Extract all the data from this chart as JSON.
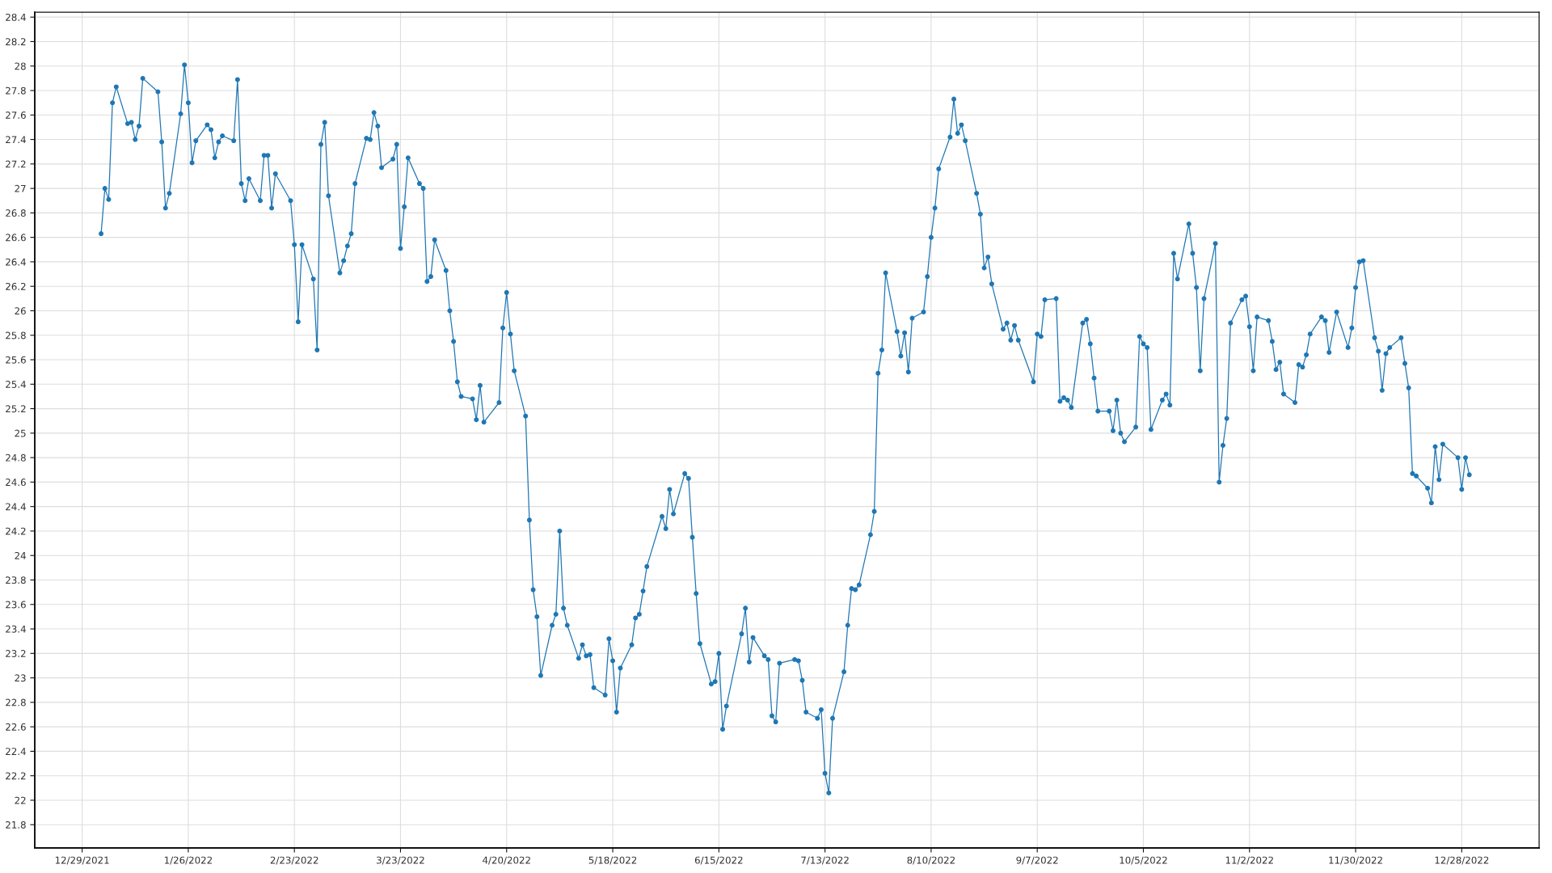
{
  "chart_data": {
    "type": "line",
    "x": [
      "2022-01-03",
      "2022-01-04",
      "2022-01-05",
      "2022-01-06",
      "2022-01-07",
      "2022-01-10",
      "2022-01-11",
      "2022-01-12",
      "2022-01-13",
      "2022-01-14",
      "2022-01-18",
      "2022-01-19",
      "2022-01-20",
      "2022-01-21",
      "2022-01-24",
      "2022-01-25",
      "2022-01-26",
      "2022-01-27",
      "2022-01-28",
      "2022-01-31",
      "2022-02-01",
      "2022-02-02",
      "2022-02-03",
      "2022-02-04",
      "2022-02-07",
      "2022-02-08",
      "2022-02-09",
      "2022-02-10",
      "2022-02-11",
      "2022-02-14",
      "2022-02-15",
      "2022-02-16",
      "2022-02-17",
      "2022-02-18",
      "2022-02-22",
      "2022-02-23",
      "2022-02-24",
      "2022-02-25",
      "2022-02-28",
      "2022-03-01",
      "2022-03-02",
      "2022-03-03",
      "2022-03-04",
      "2022-03-07",
      "2022-03-08",
      "2022-03-09",
      "2022-03-10",
      "2022-03-11",
      "2022-03-14",
      "2022-03-15",
      "2022-03-16",
      "2022-03-17",
      "2022-03-18",
      "2022-03-21",
      "2022-03-22",
      "2022-03-23",
      "2022-03-24",
      "2022-03-25",
      "2022-03-28",
      "2022-03-29",
      "2022-03-30",
      "2022-03-31",
      "2022-04-01",
      "2022-04-04",
      "2022-04-05",
      "2022-04-06",
      "2022-04-07",
      "2022-04-08",
      "2022-04-11",
      "2022-04-12",
      "2022-04-13",
      "2022-04-14",
      "2022-04-18",
      "2022-04-19",
      "2022-04-20",
      "2022-04-21",
      "2022-04-22",
      "2022-04-25",
      "2022-04-26",
      "2022-04-27",
      "2022-04-28",
      "2022-04-29",
      "2022-05-02",
      "2022-05-03",
      "2022-05-04",
      "2022-05-05",
      "2022-05-06",
      "2022-05-09",
      "2022-05-10",
      "2022-05-11",
      "2022-05-12",
      "2022-05-13",
      "2022-05-16",
      "2022-05-17",
      "2022-05-18",
      "2022-05-19",
      "2022-05-20",
      "2022-05-23",
      "2022-05-24",
      "2022-05-25",
      "2022-05-26",
      "2022-05-27",
      "2022-05-31",
      "2022-06-01",
      "2022-06-02",
      "2022-06-03",
      "2022-06-06",
      "2022-06-07",
      "2022-06-08",
      "2022-06-09",
      "2022-06-10",
      "2022-06-13",
      "2022-06-14",
      "2022-06-15",
      "2022-06-16",
      "2022-06-17",
      "2022-06-21",
      "2022-06-22",
      "2022-06-23",
      "2022-06-24",
      "2022-06-27",
      "2022-06-28",
      "2022-06-29",
      "2022-06-30",
      "2022-07-01",
      "2022-07-05",
      "2022-07-06",
      "2022-07-07",
      "2022-07-08",
      "2022-07-11",
      "2022-07-12",
      "2022-07-13",
      "2022-07-14",
      "2022-07-15",
      "2022-07-18",
      "2022-07-19",
      "2022-07-20",
      "2022-07-21",
      "2022-07-22",
      "2022-07-25",
      "2022-07-26",
      "2022-07-27",
      "2022-07-28",
      "2022-07-29",
      "2022-08-01",
      "2022-08-02",
      "2022-08-03",
      "2022-08-04",
      "2022-08-05",
      "2022-08-08",
      "2022-08-09",
      "2022-08-10",
      "2022-08-11",
      "2022-08-12",
      "2022-08-15",
      "2022-08-16",
      "2022-08-17",
      "2022-08-18",
      "2022-08-19",
      "2022-08-22",
      "2022-08-23",
      "2022-08-24",
      "2022-08-25",
      "2022-08-26",
      "2022-08-29",
      "2022-08-30",
      "2022-08-31",
      "2022-09-01",
      "2022-09-02",
      "2022-09-06",
      "2022-09-07",
      "2022-09-08",
      "2022-09-09",
      "2022-09-12",
      "2022-09-13",
      "2022-09-14",
      "2022-09-15",
      "2022-09-16",
      "2022-09-19",
      "2022-09-20",
      "2022-09-21",
      "2022-09-22",
      "2022-09-23",
      "2022-09-26",
      "2022-09-27",
      "2022-09-28",
      "2022-09-29",
      "2022-09-30",
      "2022-10-03",
      "2022-10-04",
      "2022-10-05",
      "2022-10-06",
      "2022-10-07",
      "2022-10-10",
      "2022-10-11",
      "2022-10-12",
      "2022-10-13",
      "2022-10-14",
      "2022-10-17",
      "2022-10-18",
      "2022-10-19",
      "2022-10-20",
      "2022-10-21",
      "2022-10-24",
      "2022-10-25",
      "2022-10-26",
      "2022-10-27",
      "2022-10-28",
      "2022-10-31",
      "2022-11-01",
      "2022-11-02",
      "2022-11-03",
      "2022-11-04",
      "2022-11-07",
      "2022-11-08",
      "2022-11-09",
      "2022-11-10",
      "2022-11-11",
      "2022-11-14",
      "2022-11-15",
      "2022-11-16",
      "2022-11-17",
      "2022-11-18",
      "2022-11-21",
      "2022-11-22",
      "2022-11-23",
      "2022-11-25",
      "2022-11-28",
      "2022-11-29",
      "2022-11-30",
      "2022-12-01",
      "2022-12-02",
      "2022-12-05",
      "2022-12-06",
      "2022-12-07",
      "2022-12-08",
      "2022-12-09",
      "2022-12-12",
      "2022-12-13",
      "2022-12-14",
      "2022-12-15",
      "2022-12-16",
      "2022-12-19",
      "2022-12-20",
      "2022-12-21",
      "2022-12-22",
      "2022-12-23",
      "2022-12-27",
      "2022-12-28",
      "2022-12-29",
      "2022-12-30"
    ],
    "series": [
      {
        "color": "#1f77b4",
        "values": [
          26.63,
          27.0,
          26.91,
          27.7,
          27.83,
          27.53,
          27.54,
          27.4,
          27.51,
          27.9,
          27.79,
          27.38,
          26.84,
          26.96,
          27.61,
          28.01,
          27.7,
          27.21,
          27.39,
          27.52,
          27.48,
          27.25,
          27.38,
          27.43,
          27.39,
          27.89,
          27.04,
          26.9,
          27.08,
          26.9,
          27.27,
          27.27,
          26.84,
          27.12,
          26.9,
          26.54,
          25.91,
          26.54,
          26.26,
          25.68,
          27.36,
          27.54,
          26.94,
          26.31,
          26.41,
          26.53,
          26.63,
          27.04,
          27.41,
          27.4,
          27.62,
          27.51,
          27.17,
          27.24,
          27.36,
          26.51,
          26.85,
          27.25,
          27.04,
          27.0,
          26.24,
          26.28,
          26.58,
          26.33,
          26.0,
          25.75,
          25.42,
          25.3,
          25.28,
          25.11,
          25.39,
          25.09,
          25.25,
          25.86,
          26.15,
          25.81,
          25.51,
          25.14,
          24.29,
          23.72,
          23.5,
          23.02,
          23.43,
          23.52,
          24.2,
          23.57,
          23.43,
          23.16,
          23.27,
          23.18,
          23.19,
          22.92,
          22.86,
          23.32,
          23.14,
          22.72,
          23.08,
          23.27,
          23.49,
          23.52,
          23.71,
          23.91,
          24.32,
          24.22,
          24.54,
          24.34,
          24.67,
          24.63,
          24.15,
          23.69,
          23.28,
          22.95,
          22.97,
          23.2,
          22.58,
          22.77,
          23.36,
          23.57,
          23.13,
          23.33,
          23.18,
          23.15,
          22.69,
          22.64,
          23.12,
          23.15,
          23.14,
          22.98,
          22.72,
          22.67,
          22.74,
          22.22,
          22.06,
          22.67,
          23.05,
          23.43,
          23.73,
          23.72,
          23.76,
          24.17,
          24.36,
          25.49,
          25.68,
          26.31,
          25.83,
          25.63,
          25.82,
          25.5,
          25.94,
          25.99,
          26.28,
          26.6,
          26.84,
          27.16,
          27.42,
          27.73,
          27.45,
          27.52,
          27.39,
          26.96,
          26.79,
          26.35,
          26.44,
          26.22,
          25.85,
          25.9,
          25.76,
          25.88,
          25.76,
          25.42,
          25.81,
          25.79,
          26.09,
          26.1,
          25.26,
          25.29,
          25.27,
          25.21,
          25.9,
          25.93,
          25.73,
          25.45,
          25.18,
          25.18,
          25.02,
          25.27,
          25.0,
          24.93,
          25.05,
          25.79,
          25.73,
          25.7,
          25.03,
          25.27,
          25.32,
          25.23,
          26.47,
          26.26,
          26.71,
          26.47,
          26.19,
          25.51,
          26.1,
          26.55,
          24.6,
          24.9,
          25.12,
          25.9,
          26.09,
          26.12,
          25.87,
          25.51,
          25.95,
          25.92,
          25.75,
          25.52,
          25.58,
          25.32,
          25.25,
          25.56,
          25.54,
          25.64,
          25.81,
          25.95,
          25.92,
          25.66,
          25.99,
          25.7,
          25.86,
          26.19,
          26.4,
          26.41,
          25.78,
          25.67,
          25.35,
          25.65,
          25.7,
          25.78,
          25.57,
          25.37,
          24.67,
          24.65,
          24.55,
          24.43,
          24.89,
          24.62,
          24.91,
          24.8,
          24.54,
          24.8,
          24.66
        ]
      }
    ],
    "xlim": [
      "2021-12-16T12:00",
      "2023-01-17T10:00"
    ],
    "xticks": [
      {
        "value": "2021-12-29",
        "label": "12/29/2021"
      },
      {
        "value": "2022-01-26",
        "label": "1/26/2022"
      },
      {
        "value": "2022-02-23",
        "label": "2/23/2022"
      },
      {
        "value": "2022-03-23",
        "label": "3/23/2022"
      },
      {
        "value": "2022-04-20",
        "label": "4/20/2022"
      },
      {
        "value": "2022-05-18",
        "label": "5/18/2022"
      },
      {
        "value": "2022-06-15",
        "label": "6/15/2022"
      },
      {
        "value": "2022-07-13",
        "label": "7/13/2022"
      },
      {
        "value": "2022-08-10",
        "label": "8/10/2022"
      },
      {
        "value": "2022-09-07",
        "label": "9/7/2022"
      },
      {
        "value": "2022-10-05",
        "label": "10/5/2022"
      },
      {
        "value": "2022-11-02",
        "label": "11/2/2022"
      },
      {
        "value": "2022-11-30",
        "label": "11/30/2022"
      },
      {
        "value": "2022-12-28",
        "label": "12/28/2022"
      }
    ],
    "ylim": [
      21.61,
      28.44
    ],
    "yticks": [
      21.8,
      22,
      22.2,
      22.4,
      22.6,
      22.8,
      23,
      23.2,
      23.4,
      23.6,
      23.8,
      24,
      24.2,
      24.4,
      24.6,
      24.8,
      25,
      25.2,
      25.4,
      25.6,
      25.8,
      26,
      26.2,
      26.4,
      26.6,
      26.8,
      27,
      27.2,
      27.4,
      27.6,
      27.8,
      28,
      28.2,
      28.4
    ],
    "grid": true,
    "marker": "circle",
    "line_style": "solid"
  }
}
